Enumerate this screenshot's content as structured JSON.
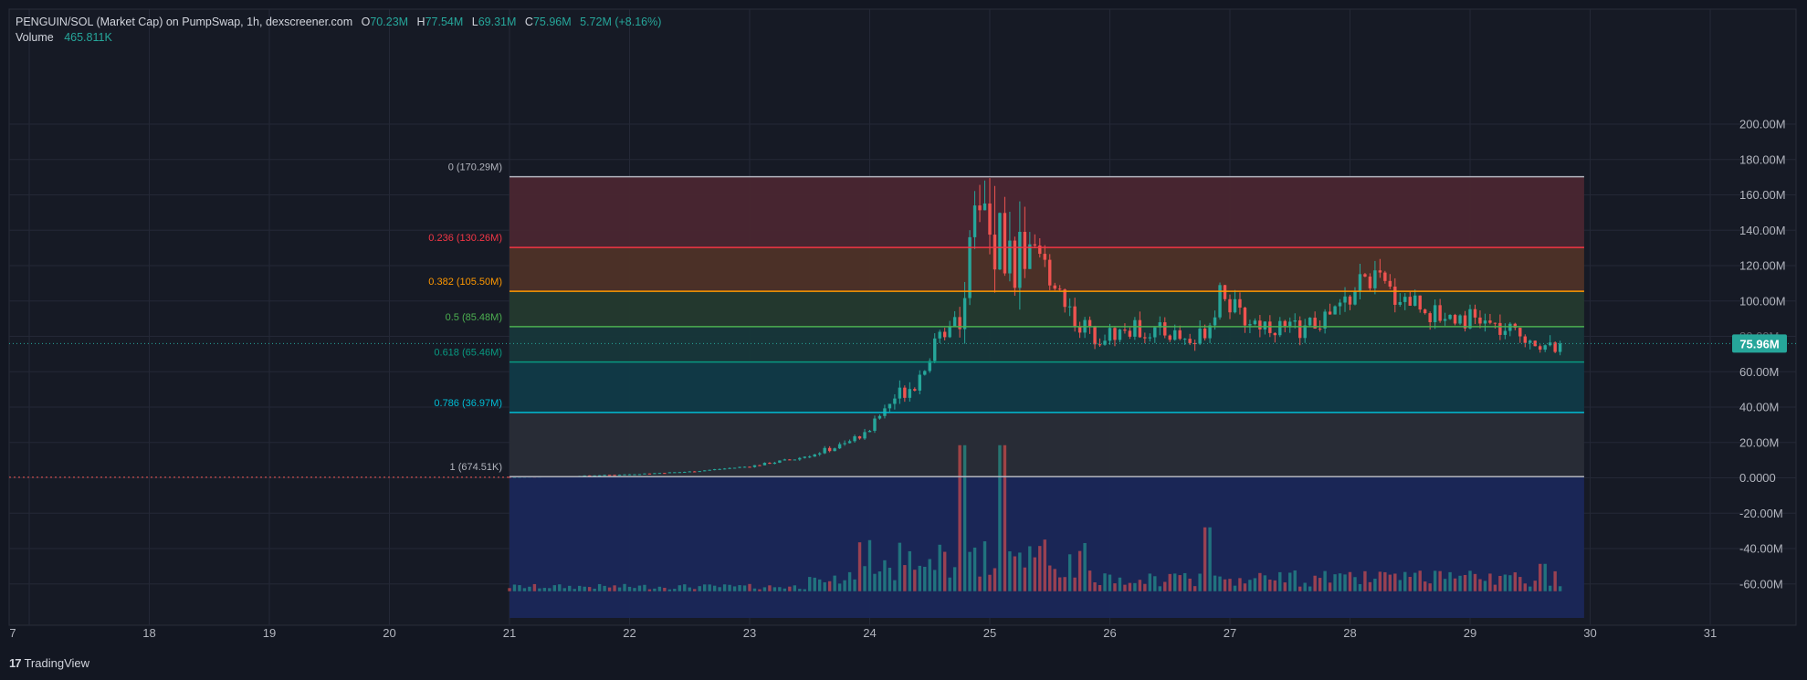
{
  "legend": {
    "symbol": "PENGUIN/SOL (Market Cap) on PumpSwap, 1h, dexscreener.com",
    "open_label": "O",
    "open": "70.23M",
    "high_label": "H",
    "high": "77.54M",
    "low_label": "L",
    "low": "69.31M",
    "close_label": "C",
    "close": "75.96M",
    "change": "5.72M (+8.16%)",
    "volume_label": "Volume",
    "volume": "465.811K"
  },
  "price_label": "75.96M",
  "brand": {
    "logo": "17",
    "name": "TradingView"
  },
  "colors": {
    "background": "#131722",
    "grid": "#242836",
    "up": "#26a69a",
    "down": "#ef5350",
    "axis_text": "#b2b5be",
    "price_label_bg": "#26a69a"
  },
  "chart_data": {
    "type": "candlestick",
    "y_axis": {
      "unit": "market cap (SOL)",
      "ticks": [
        "200.00M",
        "180.00M",
        "160.00M",
        "140.00M",
        "120.00M",
        "100.00M",
        "80.00M",
        "60.00M",
        "40.00M",
        "20.00M",
        "0.0000",
        "-20.00M",
        "-40.00M",
        "-60.00M"
      ],
      "range": [
        -62000000,
        210000000
      ]
    },
    "x_axis": {
      "ticks": [
        "7",
        "18",
        "19",
        "20",
        "21",
        "22",
        "23",
        "24",
        "25",
        "26",
        "27",
        "28",
        "29",
        "30",
        "31"
      ],
      "range_days": [
        16.98,
        31.95
      ]
    },
    "grid": true,
    "last_price": 75960000,
    "fib_retracement": {
      "x_start_day": 21.0,
      "x_end_day": 29.95,
      "levels": [
        {
          "ratio": "0",
          "value_label": "170.29M",
          "value": 170290000,
          "color": "#b2b5be",
          "fill": "#4a2630"
        },
        {
          "ratio": "0.236",
          "value_label": "130.26M",
          "value": 130260000,
          "color": "#f23645",
          "fill": "#4e3227"
        },
        {
          "ratio": "0.382",
          "value_label": "105.50M",
          "value": 105500000,
          "color": "#ff9800",
          "fill": "#243a2e"
        },
        {
          "ratio": "0.5",
          "value_label": "85.48M",
          "value": 85480000,
          "color": "#4caf50",
          "fill": "#17373a"
        },
        {
          "ratio": "0.618",
          "value_label": "65.46M",
          "value": 65460000,
          "color": "#089981",
          "fill": "#103a47"
        },
        {
          "ratio": "0.786",
          "value_label": "36.97M",
          "value": 36970000,
          "color": "#00bcd4",
          "fill": "#292d37"
        },
        {
          "ratio": "1",
          "value_label": "674.51K",
          "value": 674510,
          "color": "#b2b5be",
          "fill": "#1a2758"
        }
      ]
    },
    "price_path": [
      [
        17.0,
        0.3
      ],
      [
        20.95,
        0.5
      ],
      [
        21.5,
        1.0
      ],
      [
        22.0,
        2.0
      ],
      [
        22.5,
        3.5
      ],
      [
        23.0,
        6.5
      ],
      [
        23.4,
        11.0
      ],
      [
        23.8,
        19.0
      ],
      [
        24.0,
        28.0
      ],
      [
        24.2,
        45.0
      ],
      [
        24.4,
        56.0
      ],
      [
        24.5,
        70.0
      ],
      [
        24.65,
        87.0
      ],
      [
        24.8,
        105.0
      ],
      [
        24.88,
        140.0
      ],
      [
        24.95,
        155.0
      ],
      [
        25.0,
        150.0
      ],
      [
        25.1,
        125.0
      ],
      [
        25.25,
        128.0
      ],
      [
        25.45,
        120.0
      ],
      [
        25.6,
        105.0
      ],
      [
        25.72,
        88.0
      ],
      [
        25.9,
        80.0
      ],
      [
        26.2,
        84.0
      ],
      [
        26.5,
        82.0
      ],
      [
        26.7,
        76.0
      ],
      [
        26.85,
        90.0
      ],
      [
        26.93,
        112.0
      ],
      [
        27.0,
        98.0
      ],
      [
        27.1,
        90.0
      ],
      [
        27.3,
        87.0
      ],
      [
        27.5,
        84.0
      ],
      [
        27.7,
        86.0
      ],
      [
        27.85,
        92.0
      ],
      [
        28.0,
        102.0
      ],
      [
        28.1,
        112.0
      ],
      [
        28.2,
        113.0
      ],
      [
        28.35,
        104.0
      ],
      [
        28.55,
        100.0
      ],
      [
        28.7,
        92.0
      ],
      [
        28.9,
        92.0
      ],
      [
        29.1,
        88.0
      ],
      [
        29.3,
        82.0
      ],
      [
        29.5,
        80.0
      ],
      [
        29.65,
        72.0
      ],
      [
        29.75,
        75.96
      ]
    ],
    "volume_profile": "volume histogram plotted from the -60.00M baseline; spikes near day 24.8 and 25.1"
  }
}
